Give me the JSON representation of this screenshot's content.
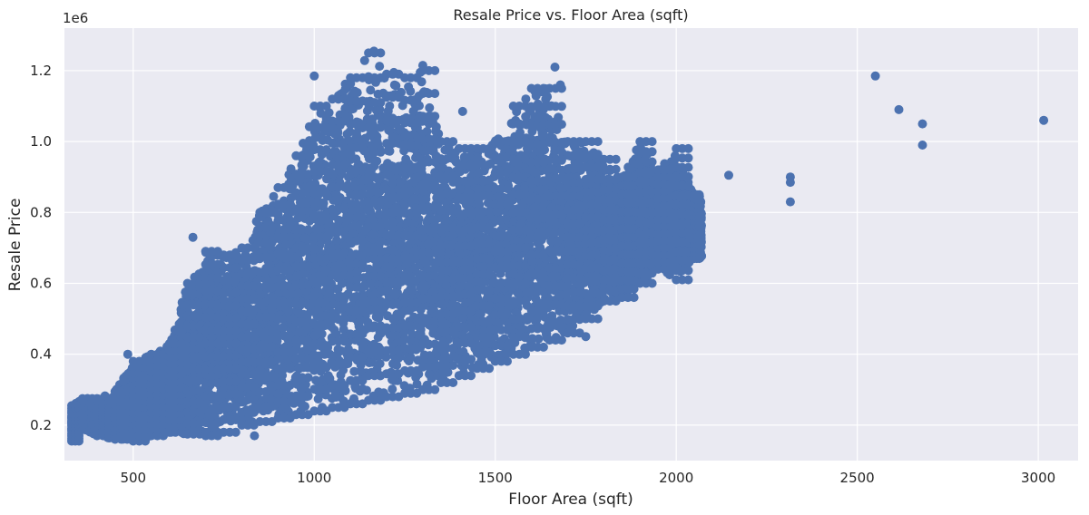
{
  "chart_data": {
    "type": "scatter",
    "title": "Resale Price vs. Floor Area (sqft)",
    "xlabel": "Floor Area (sqft)",
    "ylabel": "Resale Price",
    "offset_label": "1e6",
    "xlim": [
      310,
      3110
    ],
    "ylim": [
      100000,
      1320000
    ],
    "x_ticks": [
      500,
      1000,
      1500,
      2000,
      2500,
      3000
    ],
    "x_tick_labels": [
      "500",
      "1000",
      "1500",
      "2000",
      "2500",
      "3000"
    ],
    "y_ticks": [
      200000,
      400000,
      600000,
      800000,
      1000000,
      1200000
    ],
    "y_tick_labels": [
      "0.2",
      "0.4",
      "0.6",
      "0.8",
      "1.0",
      "1.2"
    ],
    "grid": true,
    "legend": "none",
    "colors": {
      "point": "#4c72b0",
      "background": "#eaeaf2",
      "grid": "#ffffff"
    },
    "envelope": [
      {
        "x": 330,
        "y_min": 155000,
        "y_max": 255000
      },
      {
        "x": 360,
        "y_min": 190000,
        "y_max": 275000
      },
      {
        "x": 400,
        "y_min": 170000,
        "y_max": 275000
      },
      {
        "x": 450,
        "y_min": 160000,
        "y_max": 295000
      },
      {
        "x": 500,
        "y_min": 155000,
        "y_max": 380000
      },
      {
        "x": 550,
        "y_min": 170000,
        "y_max": 400000
      },
      {
        "x": 600,
        "y_min": 180000,
        "y_max": 430000
      },
      {
        "x": 650,
        "y_min": 175000,
        "y_max": 600000
      },
      {
        "x": 700,
        "y_min": 170000,
        "y_max": 690000
      },
      {
        "x": 750,
        "y_min": 180000,
        "y_max": 680000
      },
      {
        "x": 800,
        "y_min": 200000,
        "y_max": 700000
      },
      {
        "x": 850,
        "y_min": 210000,
        "y_max": 800000
      },
      {
        "x": 900,
        "y_min": 220000,
        "y_max": 870000
      },
      {
        "x": 950,
        "y_min": 230000,
        "y_max": 960000
      },
      {
        "x": 1000,
        "y_min": 240000,
        "y_max": 1100000
      },
      {
        "x": 1050,
        "y_min": 250000,
        "y_max": 1120000
      },
      {
        "x": 1100,
        "y_min": 260000,
        "y_max": 1180000
      },
      {
        "x": 1150,
        "y_min": 270000,
        "y_max": 1250000
      },
      {
        "x": 1200,
        "y_min": 280000,
        "y_max": 1190000
      },
      {
        "x": 1250,
        "y_min": 290000,
        "y_max": 1180000
      },
      {
        "x": 1300,
        "y_min": 300000,
        "y_max": 1200000
      },
      {
        "x": 1350,
        "y_min": 320000,
        "y_max": 1000000
      },
      {
        "x": 1400,
        "y_min": 340000,
        "y_max": 980000
      },
      {
        "x": 1450,
        "y_min": 360000,
        "y_max": 980000
      },
      {
        "x": 1500,
        "y_min": 380000,
        "y_max": 1000000
      },
      {
        "x": 1550,
        "y_min": 400000,
        "y_max": 1100000
      },
      {
        "x": 1600,
        "y_min": 420000,
        "y_max": 1150000
      },
      {
        "x": 1650,
        "y_min": 440000,
        "y_max": 1150000
      },
      {
        "x": 1700,
        "y_min": 460000,
        "y_max": 1000000
      },
      {
        "x": 1750,
        "y_min": 500000,
        "y_max": 1000000
      },
      {
        "x": 1800,
        "y_min": 550000,
        "y_max": 950000
      },
      {
        "x": 1850,
        "y_min": 560000,
        "y_max": 900000
      },
      {
        "x": 1900,
        "y_min": 600000,
        "y_max": 1000000
      },
      {
        "x": 1950,
        "y_min": 640000,
        "y_max": 920000
      },
      {
        "x": 2000,
        "y_min": 610000,
        "y_max": 980000
      },
      {
        "x": 2050,
        "y_min": 670000,
        "y_max": 850000
      }
    ],
    "outliers": [
      {
        "x": 485,
        "y": 400000
      },
      {
        "x": 665,
        "y": 730000
      },
      {
        "x": 835,
        "y": 170000
      },
      {
        "x": 1000,
        "y": 1185000
      },
      {
        "x": 1165,
        "y": 1255000
      },
      {
        "x": 1220,
        "y": 1195000
      },
      {
        "x": 1300,
        "y": 1215000
      },
      {
        "x": 1410,
        "y": 1085000
      },
      {
        "x": 1665,
        "y": 1210000
      },
      {
        "x": 1680,
        "y": 1160000
      },
      {
        "x": 1750,
        "y": 450000
      },
      {
        "x": 2145,
        "y": 905000
      },
      {
        "x": 2315,
        "y": 900000
      },
      {
        "x": 2315,
        "y": 885000
      },
      {
        "x": 2315,
        "y": 830000
      },
      {
        "x": 2550,
        "y": 1185000
      },
      {
        "x": 2615,
        "y": 1090000
      },
      {
        "x": 2680,
        "y": 1050000
      },
      {
        "x": 2680,
        "y": 990000
      },
      {
        "x": 3015,
        "y": 1060000
      }
    ]
  }
}
